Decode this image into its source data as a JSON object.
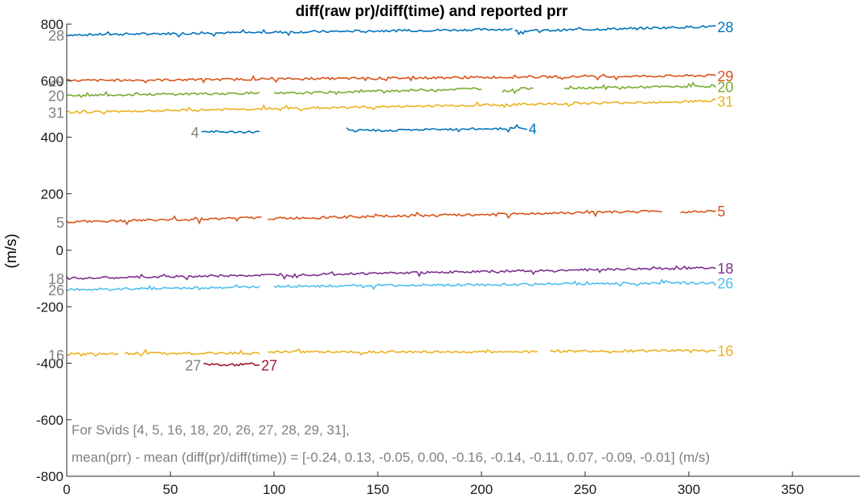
{
  "chart_data": {
    "type": "line",
    "title": "diff(raw pr)/diff(time) and reported prr",
    "xlabel": "",
    "ylabel": "(m/s)",
    "xlim": [
      0,
      350
    ],
    "ylim": [
      -800,
      800
    ],
    "xticks": [
      "0",
      "50",
      "100",
      "150",
      "200",
      "250",
      "300",
      "350"
    ],
    "yticks": [
      "-800",
      "-600",
      "-400",
      "-200",
      "0",
      "200",
      "400",
      "600",
      "800"
    ],
    "grid": false,
    "series": [
      {
        "name": "28",
        "color": "#0072BD",
        "segments": [
          [
            0,
            215,
            762,
            782
          ],
          [
            216,
            313,
            775,
            792
          ]
        ],
        "left_label": true
      },
      {
        "name": "29",
        "color": "#D95319",
        "segments": [
          [
            0,
            313,
            600,
            618
          ]
        ],
        "left_label": true
      },
      {
        "name": "20",
        "color": "#77AC30",
        "segments": [
          [
            0,
            93,
            548,
            556
          ],
          [
            100,
            200,
            554,
            572
          ],
          [
            210,
            225,
            562,
            575
          ],
          [
            240,
            313,
            574,
            580
          ]
        ],
        "left_label": true
      },
      {
        "name": "31",
        "color": "#EDB120",
        "segments": [
          [
            0,
            313,
            488,
            528
          ]
        ],
        "left_label": true
      },
      {
        "name": "4",
        "color": "#0072BD",
        "segments": [
          [
            65,
            93,
            418,
            418
          ],
          [
            135,
            222,
            422,
            432
          ]
        ],
        "left_label": true
      },
      {
        "name": "5",
        "color": "#D95319",
        "segments": [
          [
            0,
            94,
            100,
            115
          ],
          [
            97,
            287,
            112,
            138
          ],
          [
            296,
            313,
            135,
            140
          ]
        ],
        "left_label": true
      },
      {
        "name": "18",
        "color": "#7E2F8E",
        "segments": [
          [
            0,
            313,
            -100,
            -62
          ]
        ],
        "left_label": true
      },
      {
        "name": "26",
        "color": "#4DBEEE",
        "segments": [
          [
            0,
            93,
            -140,
            -130
          ],
          [
            100,
            313,
            -128,
            -115
          ]
        ],
        "left_label": true
      },
      {
        "name": "16",
        "color": "#EDB120",
        "segments": [
          [
            0,
            25,
            -370,
            -365
          ],
          [
            28,
            93,
            -365,
            -365
          ],
          [
            97,
            227,
            -360,
            -360
          ],
          [
            233,
            313,
            -358,
            -355
          ]
        ],
        "left_label": true
      },
      {
        "name": "27",
        "color": "#A2142F",
        "segments": [
          [
            66,
            93,
            -405,
            -405
          ]
        ],
        "left_label": true
      }
    ],
    "annotations": [
      "For Svids [4, 5, 16, 18, 20, 26, 27, 28, 29, 31],",
      "mean(prr) - mean (diff(pr)/diff(time)) = [-0.24, 0.13, -0.05, 0.00, -0.16, -0.14, -0.11, 0.07, -0.09, -0.01] (m/s)"
    ]
  }
}
